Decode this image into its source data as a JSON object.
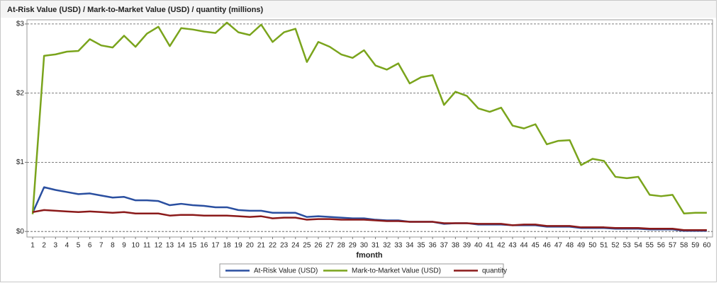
{
  "chart_data": {
    "type": "line",
    "title": "At-Risk Value (USD) / Mark-to-Market Value (USD) / quantity (millions)",
    "x_label": "fmonth",
    "categories": [
      "1",
      "2",
      "3",
      "4",
      "5",
      "6",
      "7",
      "8",
      "9",
      "10",
      "11",
      "12",
      "13",
      "14",
      "15",
      "16",
      "17",
      "18",
      "19",
      "20",
      "21",
      "22",
      "23",
      "24",
      "25",
      "26",
      "27",
      "28",
      "29",
      "30",
      "31",
      "32",
      "33",
      "34",
      "35",
      "36",
      "37",
      "38",
      "39",
      "40",
      "41",
      "42",
      "43",
      "44",
      "45",
      "46",
      "47",
      "48",
      "49",
      "50",
      "51",
      "52",
      "53",
      "54",
      "55",
      "56",
      "57",
      "58",
      "59",
      "60"
    ],
    "series": [
      {
        "name": "At-Risk Value (USD)",
        "color": "#2a4fa0",
        "values": [
          0.27,
          0.64,
          0.6,
          0.57,
          0.54,
          0.55,
          0.52,
          0.49,
          0.5,
          0.45,
          0.45,
          0.44,
          0.38,
          0.4,
          0.38,
          0.37,
          0.35,
          0.35,
          0.31,
          0.3,
          0.3,
          0.27,
          0.27,
          0.27,
          0.21,
          0.22,
          0.21,
          0.2,
          0.19,
          0.19,
          0.17,
          0.16,
          0.16,
          0.14,
          0.14,
          0.14,
          0.11,
          0.12,
          0.12,
          0.1,
          0.1,
          0.1,
          0.09,
          0.09,
          0.09,
          0.07,
          0.07,
          0.07,
          0.05,
          0.05,
          0.05,
          0.04,
          0.04,
          0.04,
          0.03,
          0.03,
          0.03,
          0.01,
          0.01,
          0.01
        ]
      },
      {
        "name": "Mark-to-Market Value (USD)",
        "color": "#7aa41c",
        "values": [
          0.25,
          2.54,
          2.56,
          2.6,
          2.61,
          2.78,
          2.69,
          2.66,
          2.83,
          2.67,
          2.86,
          2.96,
          2.68,
          2.94,
          2.92,
          2.89,
          2.87,
          3.02,
          2.88,
          2.84,
          2.99,
          2.74,
          2.88,
          2.93,
          2.45,
          2.74,
          2.67,
          2.56,
          2.51,
          2.62,
          2.4,
          2.34,
          2.43,
          2.14,
          2.23,
          2.26,
          1.83,
          2.02,
          1.96,
          1.78,
          1.73,
          1.79,
          1.53,
          1.49,
          1.55,
          1.26,
          1.31,
          1.32,
          0.96,
          1.05,
          1.02,
          0.79,
          0.77,
          0.79,
          0.53,
          0.51,
          0.53,
          0.26,
          0.27,
          0.27
        ]
      },
      {
        "name": "quantity",
        "color": "#8b1a1a",
        "values": [
          0.28,
          0.31,
          0.3,
          0.29,
          0.28,
          0.29,
          0.28,
          0.27,
          0.28,
          0.26,
          0.26,
          0.26,
          0.23,
          0.24,
          0.24,
          0.23,
          0.23,
          0.23,
          0.22,
          0.21,
          0.22,
          0.19,
          0.2,
          0.2,
          0.17,
          0.18,
          0.18,
          0.17,
          0.17,
          0.17,
          0.16,
          0.15,
          0.15,
          0.14,
          0.14,
          0.14,
          0.12,
          0.12,
          0.12,
          0.11,
          0.11,
          0.11,
          0.09,
          0.1,
          0.1,
          0.08,
          0.08,
          0.08,
          0.06,
          0.06,
          0.06,
          0.05,
          0.05,
          0.05,
          0.04,
          0.04,
          0.04,
          0.02,
          0.02,
          0.02
        ]
      }
    ],
    "ylim": [
      -0.08,
      3.06
    ],
    "yticks": [
      {
        "value": 0,
        "label": "$0"
      },
      {
        "value": 1,
        "label": "$1"
      },
      {
        "value": 2,
        "label": "$2"
      },
      {
        "value": 3,
        "label": "$3"
      }
    ],
    "grid": true,
    "legend": "bottom"
  }
}
